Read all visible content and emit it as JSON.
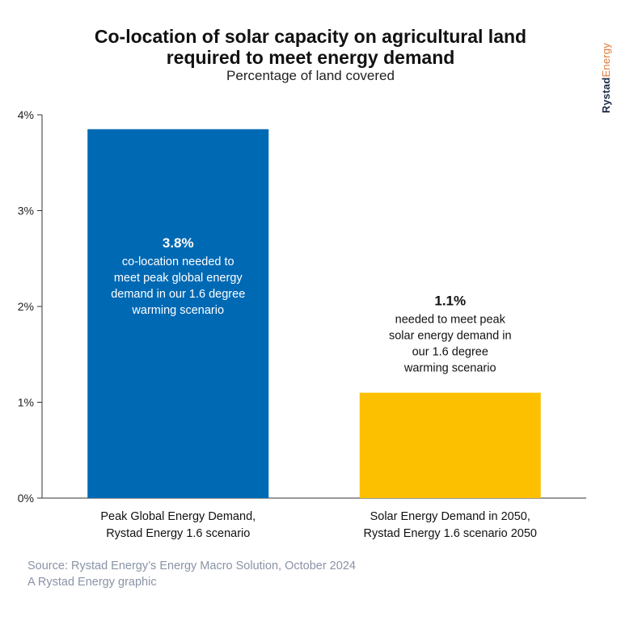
{
  "title_line1": "Co-location of solar capacity on agricultural land",
  "title_line2": "required to meet energy demand",
  "subtitle": "Percentage of land covered",
  "brand": {
    "part1": "Rystad",
    "part2": "Energy",
    "accent": "#e07b39",
    "dark": "#1e2a45"
  },
  "source_line1": "Source: Rystad Energy’s Energy Macro Solution, October 2024",
  "source_line2": "A Rystad Energy graphic",
  "chart_data": {
    "type": "bar",
    "categories": [
      [
        "Peak Global Energy Demand,",
        "Rystad Energy 1.6 scenario"
      ],
      [
        "Solar  Energy Demand in 2050,",
        "Rystad Energy 1.6 scenario 2050"
      ]
    ],
    "values": [
      3.85,
      1.1
    ],
    "colors": [
      "#0069b4",
      "#fcc000"
    ],
    "ylim": [
      0,
      4
    ],
    "yticks": [
      0,
      1,
      2,
      3,
      4
    ],
    "ytick_labels": [
      "0%",
      "1%",
      "2%",
      "3%",
      "4%"
    ],
    "grid": false,
    "annotations": [
      {
        "value_label": "3.8%",
        "lines": [
          "co-location needed to",
          "meet peak global energy",
          "demand in our 1.6 degree",
          "warming scenario"
        ],
        "color": "#ffffff",
        "placement": "inside-bar"
      },
      {
        "value_label": "1.1%",
        "lines": [
          "needed to meet peak",
          "solar energy demand in",
          "our 1.6 degree",
          "warming scenario"
        ],
        "color": "#111111",
        "placement": "above-bar"
      }
    ]
  }
}
